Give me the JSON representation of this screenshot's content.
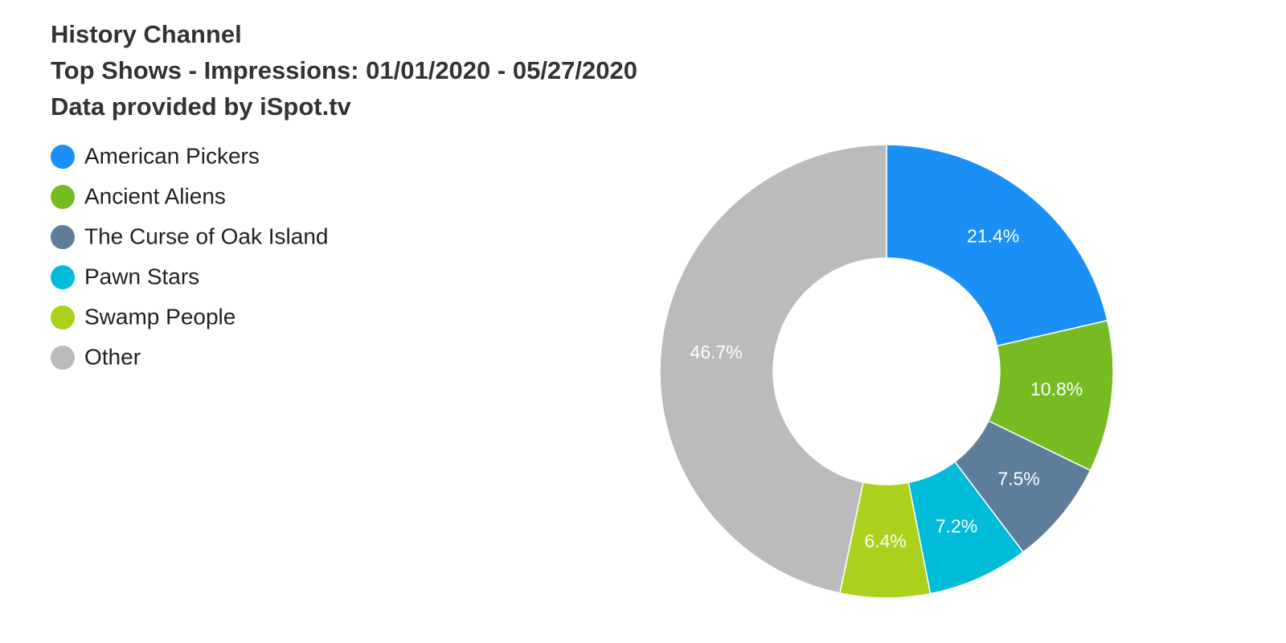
{
  "chart_data": {
    "type": "pie",
    "title": "History Channel",
    "subtitle": "Top Shows - Impressions: 01/01/2020 - 05/27/2020",
    "caption": "Data provided by iSpot.tv",
    "categories": [
      "American Pickers",
      "Ancient Aliens",
      "The Curse of Oak Island",
      "Pawn Stars",
      "Swamp People",
      "Other"
    ],
    "values": [
      21.4,
      10.8,
      7.5,
      7.2,
      6.4,
      46.7
    ],
    "value_labels": [
      "21.4%",
      "10.8%",
      "7.5%",
      "7.2%",
      "6.4%",
      "46.7%"
    ],
    "colors": [
      "#1a8ff5",
      "#77bb22",
      "#5e7d9a",
      "#00bcd8",
      "#abd11c",
      "#bbbbbb"
    ],
    "legend": "top-left"
  }
}
